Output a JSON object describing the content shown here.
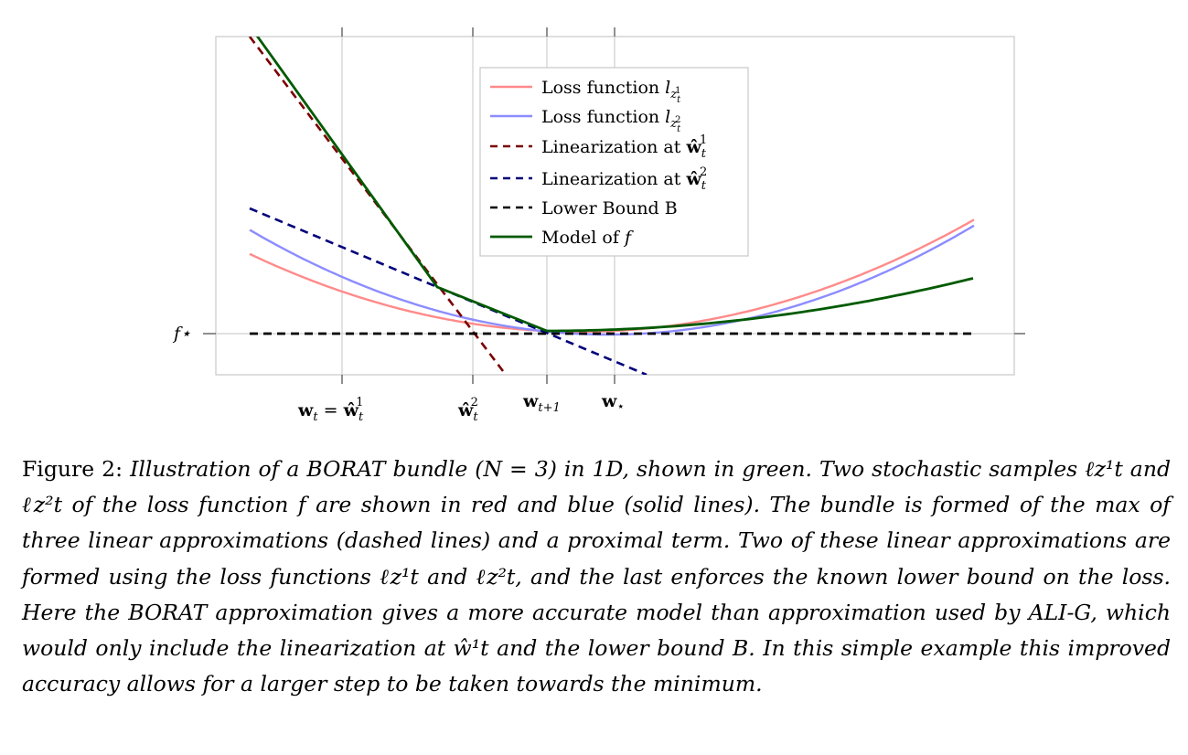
{
  "figure": {
    "y_tick_label": "f⋆",
    "x_ticks": [
      {
        "main": "w",
        "sub": "t",
        "eq": " = ",
        "hat": "ŵ",
        "hsub": "t",
        "hsup": "1"
      },
      {
        "hat": "ŵ",
        "hsub": "t",
        "hsup": "2"
      },
      {
        "main": "w",
        "sub": "t+1"
      },
      {
        "main": "w",
        "sub": "⋆"
      }
    ],
    "legend": [
      {
        "text": "Loss function ",
        "math": "l",
        "sub": "z",
        "subsub": "t",
        "subsup": "1",
        "color": "#ff8a8a",
        "dash": false
      },
      {
        "text": "Loss function ",
        "math": "l",
        "sub": "z",
        "subsub": "t",
        "subsup": "2",
        "color": "#8c8cff",
        "dash": false
      },
      {
        "text": "Linearization at ",
        "bold": "ŵ",
        "sub": "t",
        "sup": "1",
        "color": "#7a0000",
        "dash": true
      },
      {
        "text": "Linearization at ",
        "bold": "ŵ",
        "sub": "t",
        "sup": "2",
        "color": "#00007a",
        "dash": true
      },
      {
        "text": "Lower Bound B",
        "color": "#000000",
        "dash": true
      },
      {
        "text": "Model of ",
        "math": "f",
        "color": "#005a00",
        "dash": false
      }
    ]
  },
  "caption": {
    "label": "Figure 2: ",
    "body": "Illustration of a BORAT bundle (N = 3) in 1D, shown in green. Two stochastic samples ℓz¹t and ℓz²t of the loss function f are shown in red and blue (solid lines). The bundle is formed of the max of three linear approximations (dashed lines) and a proximal term. Two of these linear approximations are formed using the loss functions ℓz¹t and ℓz²t, and the last enforces the known lower bound on the loss. Here the BORAT approximation gives a more accurate model than approximation used by ALI-G, which would only include the linearization at ŵ¹t and the lower bound B. In this simple example this improved accuracy allows for a larger step to be taken towards the minimum."
  }
}
